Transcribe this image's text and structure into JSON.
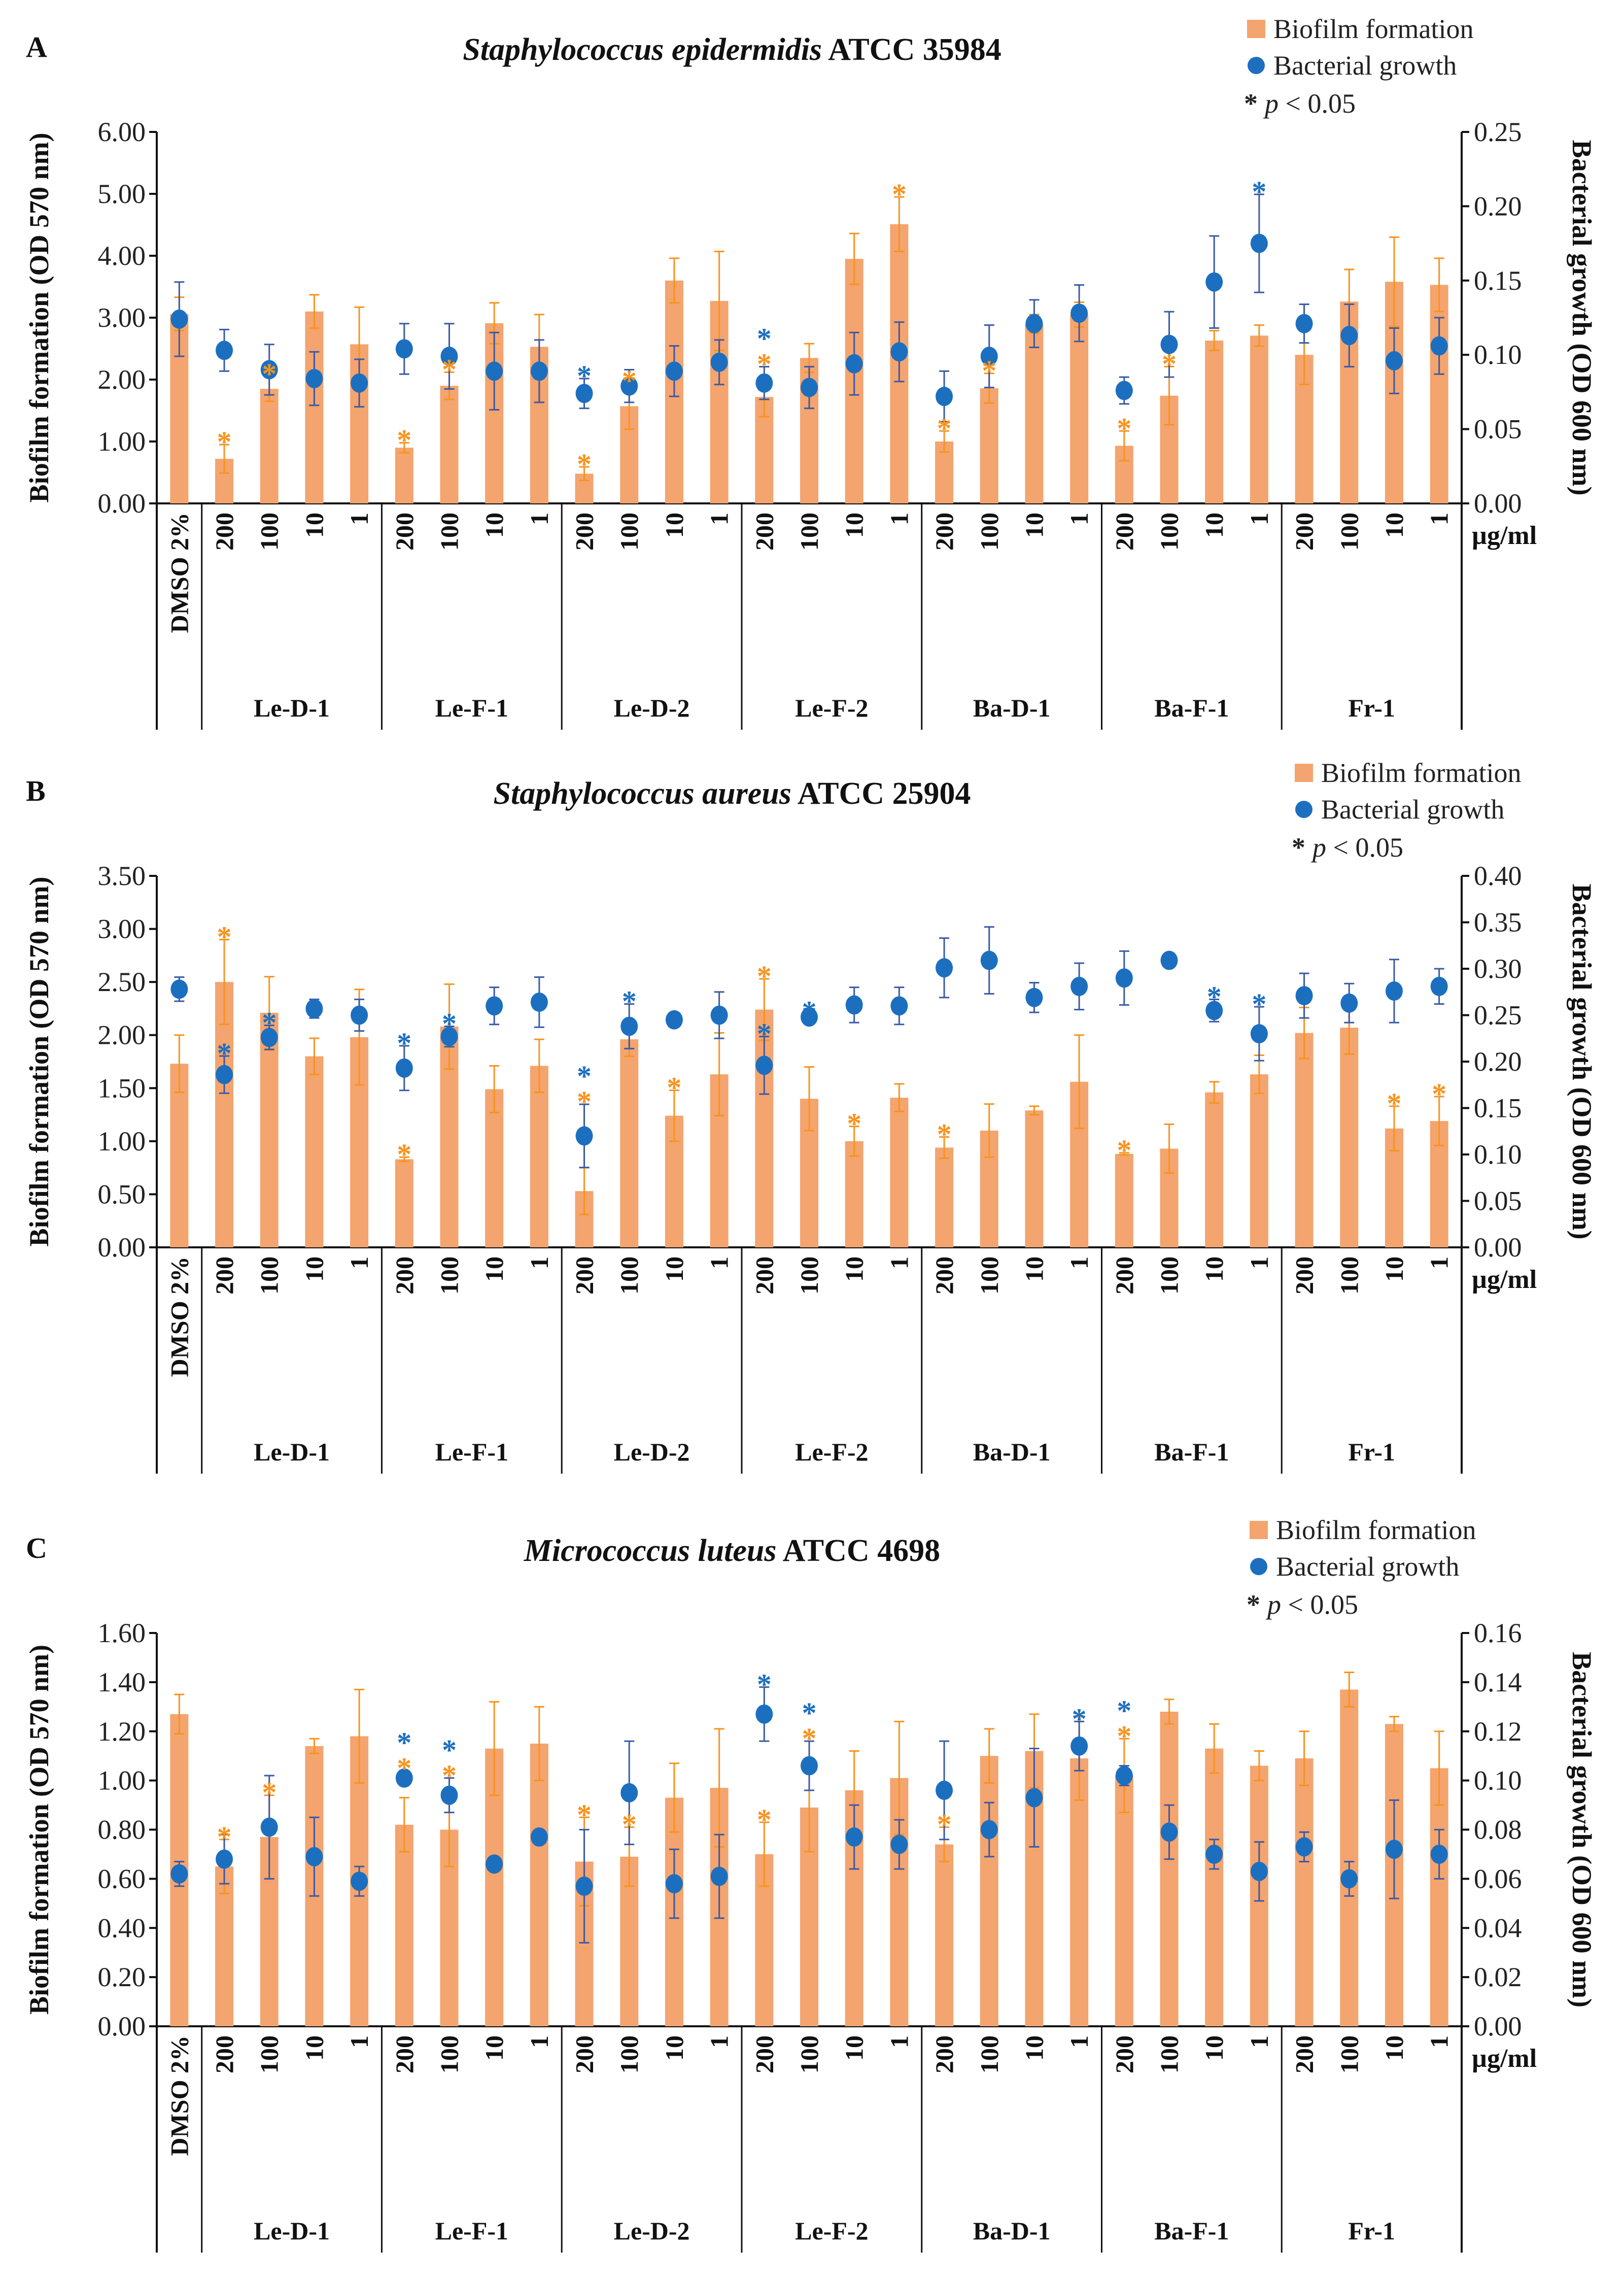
{
  "colors": {
    "bar": "#F4A46E",
    "bar_error": "#F7931E",
    "dot": "#1C6FBF",
    "dot_error": "#3A5AA6",
    "star_biofilm": "#F7931E",
    "star_growth": "#1C6FBF"
  },
  "legend": {
    "biofilm": "Biofilm formation",
    "growth": "Bacterial growth",
    "sig_star": "*",
    "sig_p": "p",
    "sig_text": " < 0.05"
  },
  "chart_data": [
    {
      "type": "bar+scatter",
      "panel_label": "A",
      "title_species": "Staphylococcus epidermidis",
      "title_strain": " ATCC 35984",
      "ylabel": "Biofilm formation (OD 570 nm)",
      "y2label": "Bacterial growth (OD 600 nm)",
      "unit_label": "µg/ml",
      "ylim": [
        0,
        6
      ],
      "yticks": [
        "0.00",
        "1.00",
        "2.00",
        "3.00",
        "4.00",
        "5.00",
        "6.00"
      ],
      "y2lim": [
        0,
        0.25
      ],
      "y2ticks": [
        "0.00",
        "0.05",
        "0.10",
        "0.15",
        "0.20",
        "0.25"
      ],
      "x_tick_labels": [
        "DMSO 2%",
        "200",
        "100",
        "10",
        "1",
        "200",
        "100",
        "10",
        "1",
        "200",
        "100",
        "10",
        "1",
        "200",
        "100",
        "10",
        "1",
        "200",
        "100",
        "10",
        "1",
        "200",
        "100",
        "10",
        "1",
        "200",
        "100",
        "10",
        "1"
      ],
      "groups": [
        "Le-D-1",
        "Le-F-1",
        "Le-D-2",
        "Le-F-2",
        "Ba-D-1",
        "Ba-F-1",
        "Fr-1"
      ],
      "series": [
        {
          "name": "Biofilm formation",
          "axis": "left",
          "kind": "bar",
          "values": [
            3.06,
            0.72,
            1.85,
            3.1,
            2.57,
            0.9,
            1.9,
            2.91,
            2.53,
            0.48,
            1.57,
            3.6,
            3.27,
            1.72,
            2.35,
            3.95,
            4.51,
            1.0,
            1.86,
            2.9,
            3.05,
            0.93,
            1.74,
            2.63,
            2.71,
            2.4,
            3.26,
            3.58,
            3.53
          ],
          "errors": [
            0.27,
            0.23,
            0.2,
            0.27,
            0.6,
            0.08,
            0.22,
            0.33,
            0.52,
            0.11,
            0.37,
            0.36,
            0.8,
            0.32,
            0.23,
            0.41,
            0.44,
            0.17,
            0.24,
            0.15,
            0.2,
            0.24,
            0.47,
            0.16,
            0.17,
            0.48,
            0.52,
            0.72,
            0.43
          ],
          "significant": [
            1,
            2,
            5,
            6,
            9,
            10,
            13,
            16,
            17,
            18,
            21,
            22
          ]
        },
        {
          "name": "Bacterial growth",
          "axis": "right",
          "kind": "point",
          "values": [
            0.124,
            0.103,
            0.09,
            0.084,
            0.081,
            0.104,
            0.099,
            0.089,
            0.089,
            0.074,
            0.079,
            0.089,
            0.095,
            0.081,
            0.078,
            0.094,
            0.102,
            0.072,
            0.099,
            0.121,
            0.128,
            0.076,
            0.107,
            0.149,
            0.175,
            0.121,
            0.113,
            0.096,
            0.106
          ],
          "errors": [
            0.025,
            0.014,
            0.017,
            0.018,
            0.016,
            0.017,
            0.022,
            0.026,
            0.021,
            0.01,
            0.011,
            0.017,
            0.015,
            0.011,
            0.014,
            0.021,
            0.02,
            0.017,
            0.021,
            0.016,
            0.019,
            0.009,
            0.022,
            0.031,
            0.033,
            0.013,
            0.021,
            0.022,
            0.019
          ],
          "significant": [
            9,
            13,
            24
          ]
        }
      ]
    },
    {
      "type": "bar+scatter",
      "panel_label": "B",
      "title_species": "Staphylococcus aureus",
      "title_strain": " ATCC 25904",
      "ylabel": "Biofilm formation (OD 570 nm)",
      "y2label": "Bacterial growth (OD 600 nm)",
      "unit_label": "µg/ml",
      "ylim": [
        0,
        3.5
      ],
      "yticks": [
        "0.00",
        "0.50",
        "1.00",
        "1.50",
        "2.00",
        "2.50",
        "3.00",
        "3.50"
      ],
      "y2lim": [
        0,
        0.4
      ],
      "y2ticks": [
        "0.00",
        "0.05",
        "0.10",
        "0.15",
        "0.20",
        "0.25",
        "0.30",
        "0.35",
        "0.40"
      ],
      "x_tick_labels": [
        "DMSO 2%",
        "200",
        "100",
        "10",
        "1",
        "200",
        "100",
        "10",
        "1",
        "200",
        "100",
        "10",
        "1",
        "200",
        "100",
        "10",
        "1",
        "200",
        "100",
        "10",
        "1",
        "200",
        "100",
        "10",
        "1",
        "200",
        "100",
        "10",
        "1"
      ],
      "groups": [
        "Le-D-1",
        "Le-F-1",
        "Le-D-2",
        "Le-F-2",
        "Ba-D-1",
        "Ba-F-1",
        "Fr-1"
      ],
      "series": [
        {
          "name": "Biofilm formation",
          "axis": "left",
          "kind": "bar",
          "values": [
            1.73,
            2.5,
            2.21,
            1.8,
            1.98,
            0.83,
            2.08,
            1.49,
            1.71,
            0.53,
            1.96,
            1.24,
            1.63,
            2.24,
            1.4,
            1.0,
            1.41,
            0.94,
            1.1,
            1.29,
            1.56,
            0.88,
            0.93,
            1.46,
            1.63,
            2.02,
            2.07,
            1.12,
            1.19
          ],
          "errors": [
            0.27,
            0.4,
            0.34,
            0.17,
            0.45,
            0.02,
            0.4,
            0.22,
            0.25,
            0.22,
            0.16,
            0.24,
            0.39,
            0.29,
            0.3,
            0.14,
            0.13,
            0.1,
            0.25,
            0.04,
            0.44,
            0.01,
            0.23,
            0.1,
            0.18,
            0.24,
            0.25,
            0.21,
            0.23
          ],
          "significant": [
            1,
            5,
            9,
            11,
            13,
            15,
            17,
            21,
            27,
            28
          ]
        },
        {
          "name": "Bacterial growth",
          "axis": "right",
          "kind": "point",
          "values": [
            0.278,
            0.186,
            0.226,
            0.257,
            0.25,
            0.193,
            0.227,
            0.26,
            0.264,
            0.12,
            0.238,
            0.245,
            0.25,
            0.196,
            0.248,
            0.261,
            0.26,
            0.301,
            0.309,
            0.269,
            0.281,
            0.29,
            0.309,
            0.255,
            0.23,
            0.271,
            0.263,
            0.276,
            0.281
          ],
          "errors": [
            0.013,
            0.02,
            0.013,
            0.01,
            0.017,
            0.024,
            0.011,
            0.02,
            0.027,
            0.034,
            0.024,
            0.003,
            0.025,
            0.031,
            0.003,
            0.019,
            0.02,
            0.032,
            0.036,
            0.016,
            0.025,
            0.029,
            0.003,
            0.012,
            0.029,
            0.024,
            0.021,
            0.034,
            0.019
          ],
          "significant": [
            1,
            2,
            5,
            6,
            9,
            10,
            13,
            14,
            23,
            24
          ]
        }
      ]
    },
    {
      "type": "bar+scatter",
      "panel_label": "C",
      "title_species": "Micrococcus luteus",
      "title_strain": " ATCC 4698",
      "ylabel": "Biofilm formation (OD 570 nm)",
      "y2label": "Bacterial growth (OD 600 nm)",
      "unit_label": "µg/ml",
      "ylim": [
        0,
        1.6
      ],
      "yticks": [
        "0.00",
        "0.20",
        "0.40",
        "0.60",
        "0.80",
        "1.00",
        "1.20",
        "1.40",
        "1.60"
      ],
      "y2lim": [
        0,
        0.16
      ],
      "y2ticks": [
        "0.00",
        "0.02",
        "0.04",
        "0.06",
        "0.08",
        "0.10",
        "0.12",
        "0.14",
        "0.16"
      ],
      "x_tick_labels": [
        "DMSO 2%",
        "200",
        "100",
        "10",
        "1",
        "200",
        "100",
        "10",
        "1",
        "200",
        "100",
        "10",
        "1",
        "200",
        "100",
        "10",
        "1",
        "200",
        "100",
        "10",
        "1",
        "200",
        "100",
        "10",
        "1",
        "200",
        "100",
        "10",
        "1"
      ],
      "groups": [
        "Le-D-1",
        "Le-F-1",
        "Le-D-2",
        "Le-F-2",
        "Ba-D-1",
        "Ba-F-1",
        "Fr-1"
      ],
      "series": [
        {
          "name": "Biofilm formation",
          "axis": "left",
          "kind": "bar",
          "values": [
            1.27,
            0.65,
            0.77,
            1.14,
            1.18,
            0.82,
            0.8,
            1.13,
            1.15,
            0.67,
            0.69,
            0.93,
            0.97,
            0.7,
            0.89,
            0.96,
            1.01,
            0.74,
            1.1,
            1.12,
            1.09,
            1.02,
            1.28,
            1.13,
            1.06,
            1.09,
            1.37,
            1.23,
            1.05
          ],
          "errors": [
            0.08,
            0.11,
            0.17,
            0.03,
            0.19,
            0.11,
            0.15,
            0.19,
            0.15,
            0.18,
            0.12,
            0.14,
            0.24,
            0.13,
            0.18,
            0.16,
            0.23,
            0.07,
            0.11,
            0.15,
            0.17,
            0.15,
            0.05,
            0.1,
            0.06,
            0.11,
            0.07,
            0.03,
            0.15
          ],
          "significant": [
            1,
            2,
            5,
            6,
            9,
            10,
            13,
            14,
            17,
            21
          ]
        },
        {
          "name": "Bacterial growth",
          "axis": "right",
          "kind": "point",
          "values": [
            0.062,
            0.068,
            0.081,
            0.069,
            0.059,
            0.101,
            0.094,
            0.066,
            0.077,
            0.057,
            0.095,
            0.058,
            0.061,
            0.127,
            0.106,
            0.077,
            0.074,
            0.096,
            0.08,
            0.093,
            0.114,
            0.102,
            0.079,
            0.07,
            0.063,
            0.073,
            0.06,
            0.072,
            0.07
          ],
          "errors": [
            0.005,
            0.01,
            0.021,
            0.016,
            0.006,
            0.003,
            0.007,
            0.003,
            0.002,
            0.023,
            0.021,
            0.014,
            0.017,
            0.011,
            0.01,
            0.013,
            0.01,
            0.02,
            0.011,
            0.02,
            0.01,
            0.004,
            0.011,
            0.006,
            0.012,
            0.006,
            0.007,
            0.02,
            0.01
          ],
          "significant": [
            5,
            6,
            13,
            14,
            20,
            21
          ]
        }
      ]
    }
  ]
}
